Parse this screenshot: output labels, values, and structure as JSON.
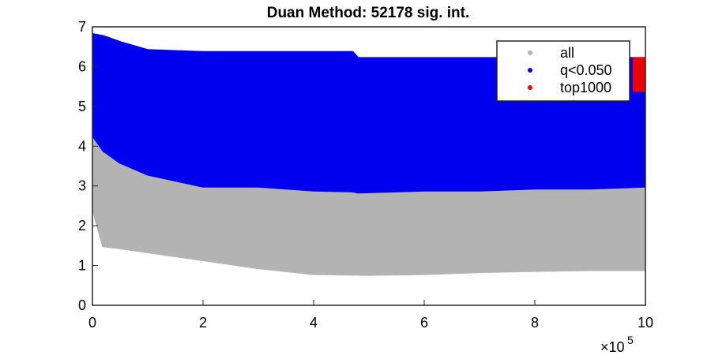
{
  "chart_data": {
    "type": "scatter-band",
    "title": "Duan Method: 52178 sig. int.",
    "x_multiplier": "×10",
    "x_multiplier_exponent": "5",
    "xlim": [
      0,
      1000000
    ],
    "xticks": [
      0,
      {
        "value": 200000,
        "label": "2"
      },
      {
        "value": 400000,
        "label": "4"
      },
      {
        "value": 600000,
        "label": "6"
      },
      {
        "value": 800000,
        "label": "8"
      },
      {
        "value": 1000000,
        "label": "10"
      }
    ],
    "ylim": [
      0,
      7
    ],
    "yticks": [
      0,
      1,
      2,
      3,
      4,
      5,
      6,
      7
    ],
    "legend": "northeast",
    "series": [
      {
        "name": "all",
        "color": "#b3b3b3",
        "x": [
          0,
          20000,
          50000,
          100000,
          200000,
          300000,
          400000,
          500000,
          600000,
          700000,
          800000,
          900000,
          1000000
        ],
        "low": [
          2.5,
          1.5,
          1.45,
          1.35,
          1.15,
          0.95,
          0.8,
          0.78,
          0.8,
          0.85,
          0.88,
          0.9,
          0.9
        ],
        "high": [
          4.5,
          4.0,
          3.6,
          3.3,
          3.0,
          3.0,
          3.0,
          2.95,
          2.95,
          2.95,
          2.95,
          2.95,
          3.0
        ]
      },
      {
        "name": "q<0.050",
        "color": "#0000ee",
        "x": [
          0,
          20000,
          50000,
          100000,
          200000,
          300000,
          400000,
          470000,
          480000,
          600000,
          700000,
          800000,
          900000,
          1000000
        ],
        "low": [
          4.3,
          3.9,
          3.6,
          3.3,
          3.0,
          3.0,
          2.9,
          2.88,
          2.85,
          2.9,
          2.9,
          2.95,
          2.95,
          3.0
        ],
        "high": [
          6.8,
          6.75,
          6.6,
          6.4,
          6.35,
          6.35,
          6.35,
          6.35,
          6.2,
          6.2,
          6.2,
          6.2,
          6.2,
          6.2
        ]
      },
      {
        "name": "top1000",
        "color": "#ee0000",
        "x": [
          980000,
          1000000
        ],
        "low": [
          5.4,
          5.4
        ],
        "high": [
          6.2,
          6.2
        ]
      }
    ]
  }
}
